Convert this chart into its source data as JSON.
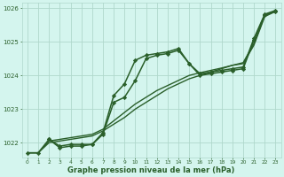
{
  "xlabel": "Graphe pression niveau de la mer (hPa)",
  "ylim": [
    1021.55,
    1026.15
  ],
  "xlim": [
    -0.5,
    23.5
  ],
  "yticks": [
    1022,
    1023,
    1024,
    1025,
    1026
  ],
  "xticks": [
    0,
    1,
    2,
    3,
    4,
    5,
    6,
    7,
    8,
    9,
    10,
    11,
    12,
    13,
    14,
    15,
    16,
    17,
    18,
    19,
    20,
    21,
    22,
    23
  ],
  "bg_color": "#d4f5ee",
  "grid_color": "#b0d8cc",
  "line_color": "#2a5f2a",
  "series": [
    {
      "x": [
        0,
        1,
        2,
        3,
        4,
        5,
        6,
        7,
        8,
        9,
        10,
        11,
        12,
        13,
        14,
        15,
        16,
        17,
        18,
        19,
        20,
        21,
        22,
        23
      ],
      "y": [
        1021.7,
        1021.7,
        1022.1,
        1021.9,
        1021.95,
        1021.95,
        1021.95,
        1022.3,
        1023.4,
        1023.75,
        1024.45,
        1024.6,
        1024.65,
        1024.7,
        1024.8,
        1024.35,
        1024.0,
        1024.05,
        1024.1,
        1024.15,
        1024.2,
        1025.05,
        1025.8,
        1025.9
      ],
      "marker": "D",
      "markersize": 2.2,
      "linewidth": 1.1
    },
    {
      "x": [
        0,
        1,
        2,
        3,
        4,
        5,
        6,
        7,
        8,
        9,
        10,
        11,
        12,
        13,
        14,
        15,
        16,
        17,
        18,
        19,
        20,
        21,
        22,
        23
      ],
      "y": [
        1021.7,
        1021.7,
        1022.0,
        1022.05,
        1022.1,
        1022.15,
        1022.2,
        1022.35,
        1022.55,
        1022.75,
        1023.0,
        1023.2,
        1023.4,
        1023.6,
        1023.75,
        1023.9,
        1024.0,
        1024.1,
        1024.2,
        1024.3,
        1024.35,
        1024.9,
        1025.75,
        1025.9
      ],
      "marker": null,
      "linewidth": 1.0
    },
    {
      "x": [
        0,
        1,
        2,
        3,
        4,
        5,
        6,
        7,
        8,
        9,
        10,
        11,
        12,
        13,
        14,
        15,
        16,
        17,
        18,
        19,
        20,
        21,
        22,
        23
      ],
      "y": [
        1021.7,
        1021.7,
        1022.05,
        1022.1,
        1022.15,
        1022.2,
        1022.25,
        1022.4,
        1022.65,
        1022.9,
        1023.15,
        1023.35,
        1023.55,
        1023.7,
        1023.85,
        1024.0,
        1024.08,
        1024.15,
        1024.22,
        1024.3,
        1024.38,
        1024.95,
        1025.78,
        1025.92
      ],
      "marker": null,
      "linewidth": 1.0
    },
    {
      "x": [
        2,
        3,
        4,
        5,
        6,
        7,
        8,
        9,
        10,
        11,
        12,
        13,
        14,
        15,
        16,
        17,
        18,
        19,
        20,
        21,
        22,
        23
      ],
      "y": [
        1022.1,
        1021.85,
        1021.9,
        1021.9,
        1021.95,
        1022.25,
        1023.2,
        1023.35,
        1023.85,
        1024.5,
        1024.6,
        1024.65,
        1024.75,
        1024.35,
        1024.05,
        1024.1,
        1024.15,
        1024.2,
        1024.25,
        1025.1,
        1025.82,
        1025.93
      ],
      "marker": "D",
      "markersize": 2.2,
      "linewidth": 1.1
    }
  ]
}
